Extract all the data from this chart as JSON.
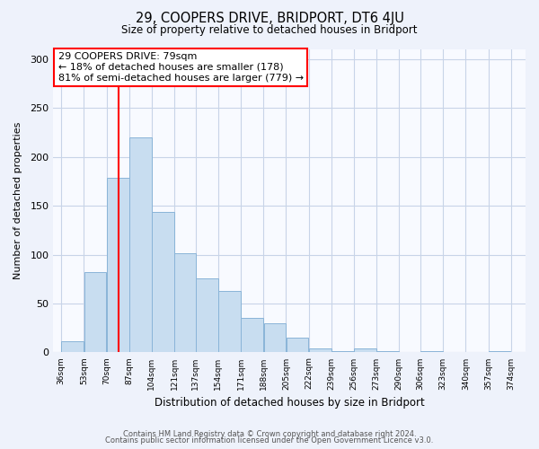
{
  "title": "29, COOPERS DRIVE, BRIDPORT, DT6 4JU",
  "subtitle": "Size of property relative to detached houses in Bridport",
  "xlabel": "Distribution of detached houses by size in Bridport",
  "ylabel": "Number of detached properties",
  "bar_left_edges": [
    36,
    53,
    70,
    87,
    104,
    121,
    137,
    154,
    171,
    188,
    205,
    222,
    239,
    256,
    273,
    290,
    306,
    323,
    340,
    357
  ],
  "bar_widths": [
    17,
    17,
    17,
    17,
    17,
    16,
    17,
    17,
    17,
    17,
    17,
    17,
    17,
    17,
    17,
    16,
    17,
    17,
    17,
    17
  ],
  "bar_heights": [
    11,
    82,
    179,
    220,
    144,
    101,
    76,
    63,
    35,
    30,
    15,
    4,
    1,
    4,
    1,
    0,
    1,
    0,
    0,
    1
  ],
  "bar_color": "#c8ddf0",
  "bar_edge_color": "#8ab4d8",
  "tick_labels": [
    "36sqm",
    "53sqm",
    "70sqm",
    "87sqm",
    "104sqm",
    "121sqm",
    "137sqm",
    "154sqm",
    "171sqm",
    "188sqm",
    "205sqm",
    "222sqm",
    "239sqm",
    "256sqm",
    "273sqm",
    "290sqm",
    "306sqm",
    "323sqm",
    "340sqm",
    "357sqm",
    "374sqm"
  ],
  "tick_positions": [
    36,
    53,
    70,
    87,
    104,
    121,
    137,
    154,
    171,
    188,
    205,
    222,
    239,
    256,
    273,
    290,
    306,
    323,
    340,
    357,
    374
  ],
  "ylim": [
    0,
    310
  ],
  "xlim": [
    30,
    385
  ],
  "property_line_x": 79,
  "annotation_title": "29 COOPERS DRIVE: 79sqm",
  "annotation_line1": "← 18% of detached houses are smaller (178)",
  "annotation_line2": "81% of semi-detached houses are larger (779) →",
  "footer_line1": "Contains HM Land Registry data © Crown copyright and database right 2024.",
  "footer_line2": "Contains public sector information licensed under the Open Government Licence v3.0.",
  "bg_color": "#eef2fb",
  "plot_bg_color": "#f8faff",
  "grid_color": "#c8d4e8"
}
